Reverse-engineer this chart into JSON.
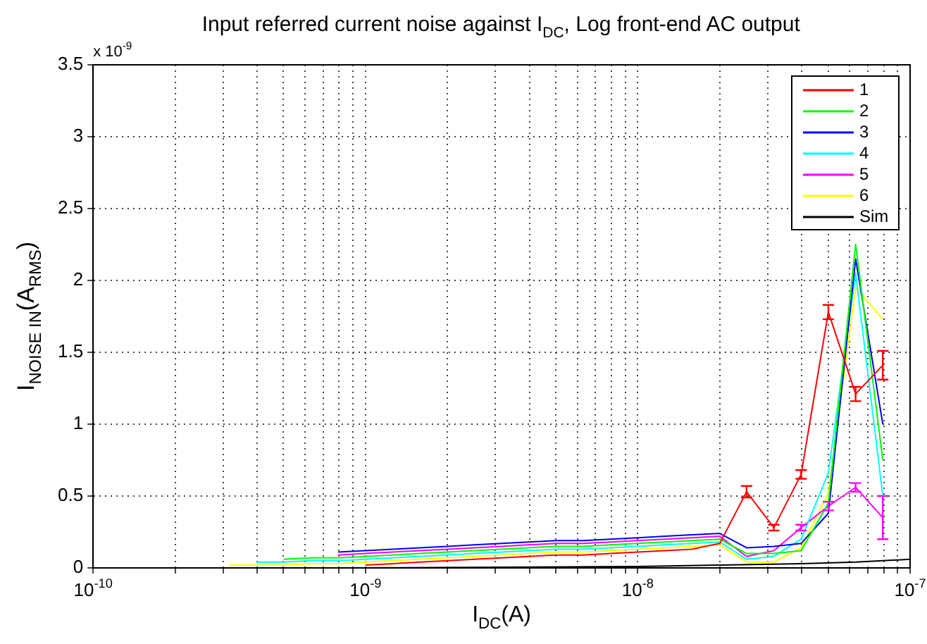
{
  "chart_data": {
    "type": "line",
    "title": "Input referred current noise against I$_{DC}$, Log front-end AC output",
    "xlabel": "I$_{DC}$(A)",
    "ylabel": "I$_{NOISE IN}$(A$_{RMS}$)",
    "annotations": [
      "x 10$^{-9}$"
    ],
    "x": [
      3.16e-10,
      3.98e-10,
      5.01e-10,
      6.31e-10,
      7.94e-10,
      1e-09,
      1.26e-09,
      1.58e-09,
      2e-09,
      2.51e-09,
      3.16e-09,
      3.98e-09,
      5.01e-09,
      6.31e-09,
      7.94e-09,
      1e-08,
      1.26e-08,
      1.58e-08,
      2e-08,
      2.51e-08,
      3.16e-08,
      3.98e-08,
      5.01e-08,
      6.31e-08,
      7.94e-08
    ],
    "series": [
      {
        "name": "1",
        "color": "#ff0000",
        "values": [
          null,
          null,
          null,
          null,
          null,
          0.02,
          0.03,
          0.04,
          0.05,
          0.06,
          0.07,
          0.08,
          0.09,
          0.09,
          0.1,
          0.11,
          0.12,
          0.13,
          0.17,
          0.53,
          0.28,
          0.65,
          1.78,
          1.21,
          1.41
        ],
        "errors": [
          null,
          null,
          null,
          null,
          null,
          null,
          null,
          null,
          null,
          null,
          null,
          null,
          null,
          null,
          null,
          null,
          null,
          null,
          null,
          0.04,
          0.02,
          0.03,
          0.05,
          0.05,
          0.1
        ]
      },
      {
        "name": "2",
        "color": "#00ff00",
        "values": [
          null,
          null,
          0.06,
          0.07,
          0.07,
          0.08,
          0.09,
          0.1,
          0.11,
          0.12,
          0.13,
          0.14,
          0.15,
          0.15,
          0.16,
          0.17,
          0.18,
          0.19,
          0.2,
          0.1,
          0.1,
          0.12,
          0.45,
          2.25,
          0.75
        ]
      },
      {
        "name": "3",
        "color": "#0000ff",
        "values": [
          null,
          null,
          null,
          null,
          0.11,
          0.12,
          0.13,
          0.14,
          0.15,
          0.16,
          0.17,
          0.18,
          0.19,
          0.19,
          0.2,
          0.21,
          0.22,
          0.23,
          0.24,
          0.14,
          0.15,
          0.17,
          0.38,
          2.15,
          1.0
        ]
      },
      {
        "name": "4",
        "color": "#00ffff",
        "values": [
          null,
          0.04,
          0.04,
          0.05,
          0.05,
          0.06,
          0.07,
          0.08,
          0.09,
          0.1,
          0.11,
          0.12,
          0.13,
          0.13,
          0.14,
          0.15,
          0.16,
          0.17,
          0.18,
          0.06,
          0.08,
          0.2,
          0.66,
          2.05,
          0.5
        ]
      },
      {
        "name": "5",
        "color": "#ff00ff",
        "values": [
          null,
          null,
          null,
          null,
          0.09,
          0.1,
          0.11,
          0.12,
          0.13,
          0.14,
          0.15,
          0.16,
          0.17,
          0.17,
          0.18,
          0.19,
          0.2,
          0.21,
          0.22,
          0.08,
          0.12,
          0.28,
          0.43,
          0.56,
          0.35
        ],
        "errors": [
          null,
          null,
          null,
          null,
          null,
          null,
          null,
          null,
          null,
          null,
          null,
          null,
          null,
          null,
          null,
          null,
          null,
          null,
          null,
          null,
          null,
          0.02,
          0.03,
          0.03,
          0.15
        ]
      },
      {
        "name": "6",
        "color": "#ffff00",
        "values": [
          0.02,
          0.02,
          0.02,
          0.03,
          0.03,
          0.04,
          0.05,
          0.06,
          0.07,
          0.08,
          0.09,
          0.1,
          0.11,
          0.11,
          0.12,
          0.13,
          0.14,
          0.15,
          0.16,
          0.04,
          0.04,
          0.14,
          0.52,
          1.95,
          1.73
        ]
      },
      {
        "name": "Sim",
        "color": "#000000",
        "x": [
          1e-10,
          1e-09,
          1e-08,
          2e-08,
          4e-08,
          6.31e-08,
          1e-07
        ],
        "values": [
          0,
          0,
          0.01,
          0.02,
          0.03,
          0.04,
          0.06
        ]
      }
    ],
    "xlim": [
      1e-10,
      1e-07
    ],
    "xticks": [
      {
        "value": 1e-10,
        "label": "10$^{-10}$"
      },
      {
        "value": 2e-10,
        "label": null
      },
      {
        "value": 3e-10,
        "label": null
      },
      {
        "value": 4e-10,
        "label": null
      },
      {
        "value": 5e-10,
        "label": null
      },
      {
        "value": 6e-10,
        "label": null
      },
      {
        "value": 7e-10,
        "label": null
      },
      {
        "value": 8e-10,
        "label": null
      },
      {
        "value": 9e-10,
        "label": null
      },
      {
        "value": 1e-09,
        "label": "10$^{-9}$"
      },
      {
        "value": 2e-09,
        "label": null
      },
      {
        "value": 3e-09,
        "label": null
      },
      {
        "value": 4e-09,
        "label": null
      },
      {
        "value": 5e-09,
        "label": null
      },
      {
        "value": 6e-09,
        "label": null
      },
      {
        "value": 7e-09,
        "label": null
      },
      {
        "value": 8e-09,
        "label": null
      },
      {
        "value": 9e-09,
        "label": null
      },
      {
        "value": 1e-08,
        "label": "10$^{-8}$"
      },
      {
        "value": 2e-08,
        "label": null
      },
      {
        "value": 3e-08,
        "label": null
      },
      {
        "value": 4e-08,
        "label": null
      },
      {
        "value": 5e-08,
        "label": null
      },
      {
        "value": 6e-08,
        "label": null
      },
      {
        "value": 7e-08,
        "label": null
      },
      {
        "value": 8e-08,
        "label": null
      },
      {
        "value": 9e-08,
        "label": null
      },
      {
        "value": 1e-07,
        "label": "10$^{-7}$"
      }
    ],
    "ylim": [
      0,
      3.5
    ],
    "yticks": [
      0,
      0.5,
      1,
      1.5,
      2,
      2.5,
      3,
      3.5
    ],
    "log": "x",
    "grid": true,
    "legend": "top right",
    "marker": "none",
    "line_style": "solid"
  }
}
